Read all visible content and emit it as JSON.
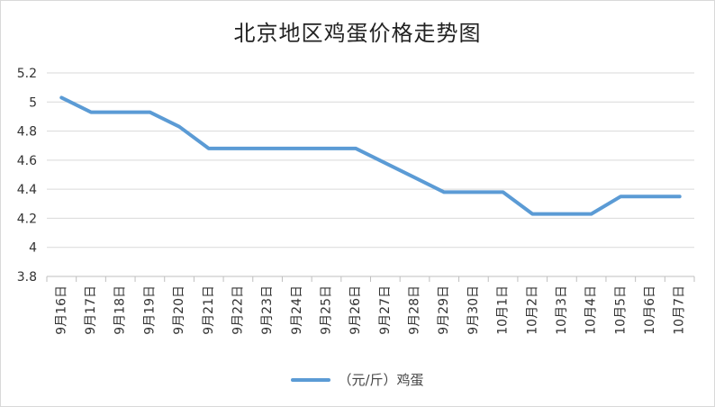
{
  "chart_data": {
    "type": "line",
    "title": "北京地区鸡蛋价格走势图",
    "xlabel": "",
    "ylabel": "",
    "ylim": [
      3.8,
      5.2
    ],
    "yticks": [
      "3.8",
      "4",
      "4.2",
      "4.4",
      "4.6",
      "4.8",
      "5",
      "5.2"
    ],
    "grid": true,
    "legend_position": "bottom",
    "categories": [
      "9月16日",
      "9月17日",
      "9月18日",
      "9月19日",
      "9月20日",
      "9月21日",
      "9月22日",
      "9月23日",
      "9月24日",
      "9月25日",
      "9月26日",
      "9月27日",
      "9月28日",
      "9月29日",
      "9月30日",
      "10月1日",
      "10月2日",
      "10月3日",
      "10月4日",
      "10月5日",
      "10月6日",
      "10月7日"
    ],
    "series": [
      {
        "name": "（元/斤）鸡蛋",
        "color": "#5b9bd5",
        "values": [
          5.03,
          4.93,
          4.93,
          4.93,
          4.83,
          4.68,
          4.68,
          4.68,
          4.68,
          4.68,
          4.68,
          4.58,
          4.48,
          4.38,
          4.38,
          4.38,
          4.23,
          4.23,
          4.23,
          4.35,
          4.35,
          4.35
        ]
      }
    ]
  }
}
